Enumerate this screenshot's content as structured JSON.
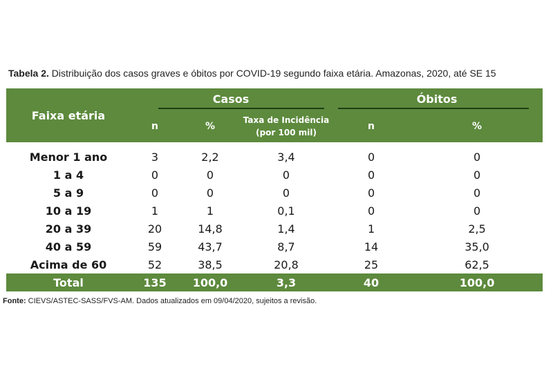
{
  "caption": {
    "label": "Tabela 2.",
    "text": " Distribuição dos casos graves e óbitos por COVID-19 segundo faixa etária. Amazonas, 2020, até SE 15"
  },
  "table": {
    "header": {
      "age_group": "Faixa etária",
      "cases_group": "Casos",
      "deaths_group": "Óbitos",
      "cases_n": "n",
      "cases_pct": "%",
      "incidence_line1": "Taxa de Incidência",
      "incidence_line2": "(por 100 mil)",
      "deaths_n": "n",
      "deaths_pct": "%"
    },
    "rows": [
      {
        "age": "Menor 1 ano",
        "cases_n": "3",
        "cases_pct": "2,2",
        "incidence": "3,4",
        "deaths_n": "0",
        "deaths_pct": "0"
      },
      {
        "age": "1 a 4",
        "cases_n": "0",
        "cases_pct": "0",
        "incidence": "0",
        "deaths_n": "0",
        "deaths_pct": "0"
      },
      {
        "age": "5 a 9",
        "cases_n": "0",
        "cases_pct": "0",
        "incidence": "0",
        "deaths_n": "0",
        "deaths_pct": "0"
      },
      {
        "age": "10 a 19",
        "cases_n": "1",
        "cases_pct": "1",
        "incidence": "0,1",
        "deaths_n": "0",
        "deaths_pct": "0"
      },
      {
        "age": "20 a 39",
        "cases_n": "20",
        "cases_pct": "14,8",
        "incidence": "1,4",
        "deaths_n": "1",
        "deaths_pct": "2,5"
      },
      {
        "age": "40 a 59",
        "cases_n": "59",
        "cases_pct": "43,7",
        "incidence": "8,7",
        "deaths_n": "14",
        "deaths_pct": "35,0"
      },
      {
        "age": "Acima de 60",
        "cases_n": "52",
        "cases_pct": "38,5",
        "incidence": "20,8",
        "deaths_n": "25",
        "deaths_pct": "62,5"
      }
    ],
    "total": {
      "age": "Total",
      "cases_n": "135",
      "cases_pct": "100,0",
      "incidence": "3,3",
      "deaths_n": "40",
      "deaths_pct": "100,0"
    }
  },
  "source": {
    "label": "Fonte:",
    "text": " CIEVS/ASTEC-SASS/FVS-AM. Dados atualizados em 09/04/2020, sujeitos a revisão."
  },
  "colors": {
    "header_bg": "#5d8a3d",
    "header_text": "#ffffff",
    "rule": "#1f3d13"
  }
}
